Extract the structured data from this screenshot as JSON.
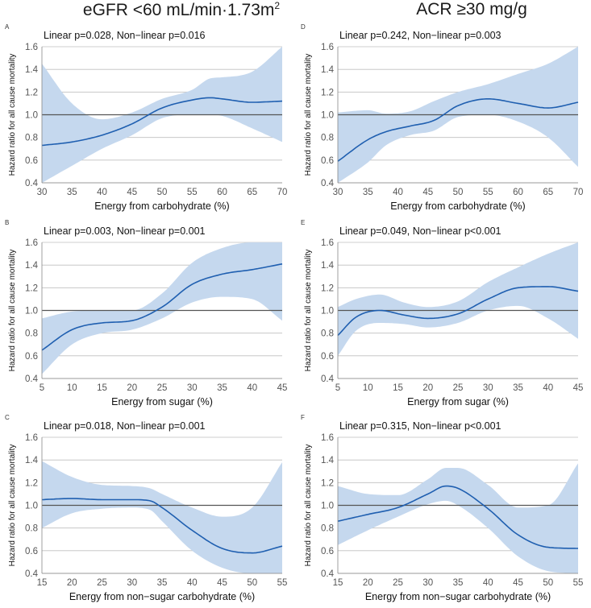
{
  "headers": {
    "left": "eGFR <60 mL/min·1.73m",
    "left_sup": "2",
    "right": "ACR ≥30 mg/g"
  },
  "colors": {
    "line": "#1f5fb0",
    "band": "#c5d8ee",
    "reference": "#555555",
    "grid": "#bfbfbf"
  },
  "chart_data": [
    {
      "id": "A",
      "type": "line",
      "panel_label": "A",
      "title": "Linear p=0.028, Non−linear p=0.016",
      "xlabel": "Energy from carbohydrate (%)",
      "ylabel": "Hazard ratio for all cause mortality",
      "xlim": [
        30,
        70
      ],
      "ylim": [
        0.4,
        1.6
      ],
      "xticks": [
        30,
        35,
        40,
        45,
        50,
        55,
        60,
        65,
        70
      ],
      "yticks": [
        0.4,
        0.6,
        0.8,
        1.0,
        1.2,
        1.4,
        1.6
      ],
      "reference_line": 1.0,
      "x": [
        30,
        35,
        40,
        45,
        50,
        55,
        58,
        60,
        65,
        70
      ],
      "hr": [
        0.73,
        0.76,
        0.82,
        0.92,
        1.06,
        1.13,
        1.15,
        1.14,
        1.11,
        1.12
      ],
      "lower": [
        0.4,
        0.55,
        0.7,
        0.82,
        0.97,
        1.0,
        1.0,
        0.99,
        0.88,
        0.76
      ],
      "upper": [
        1.45,
        1.1,
        0.96,
        1.02,
        1.14,
        1.22,
        1.32,
        1.33,
        1.38,
        1.6
      ]
    },
    {
      "id": "D",
      "type": "line",
      "panel_label": "D",
      "title": "Linear p=0.242, Non−linear p=0.003",
      "xlabel": "Energy from carbohydrate (%)",
      "ylabel": "Hazard ratio for all cause mortality",
      "xlim": [
        30,
        70
      ],
      "ylim": [
        0.4,
        1.6
      ],
      "xticks": [
        30,
        35,
        40,
        45,
        50,
        55,
        60,
        65,
        70
      ],
      "yticks": [
        0.4,
        0.6,
        0.8,
        1.0,
        1.2,
        1.4,
        1.6
      ],
      "reference_line": 1.0,
      "x": [
        30,
        35,
        38,
        42,
        46,
        50,
        55,
        60,
        65,
        70
      ],
      "hr": [
        0.59,
        0.78,
        0.85,
        0.9,
        0.95,
        1.08,
        1.14,
        1.1,
        1.06,
        1.11
      ],
      "lower": [
        0.4,
        0.58,
        0.73,
        0.82,
        0.86,
        0.98,
        1.0,
        0.94,
        0.8,
        0.54
      ],
      "upper": [
        1.02,
        1.04,
        1.01,
        1.03,
        1.12,
        1.2,
        1.27,
        1.36,
        1.45,
        1.6
      ]
    },
    {
      "id": "B",
      "type": "line",
      "panel_label": "B",
      "title": "Linear p=0.003, Non−linear p=0.001",
      "xlabel": "Energy from sugar (%)",
      "ylabel": "Hazard ratio for all cause mortality",
      "xlim": [
        5,
        45
      ],
      "ylim": [
        0.4,
        1.6
      ],
      "xticks": [
        5,
        10,
        15,
        20,
        25,
        30,
        35,
        40,
        45
      ],
      "yticks": [
        0.4,
        0.6,
        0.8,
        1.0,
        1.2,
        1.4,
        1.6
      ],
      "reference_line": 1.0,
      "x": [
        5,
        10,
        15,
        20,
        25,
        30,
        35,
        40,
        45
      ],
      "hr": [
        0.65,
        0.83,
        0.89,
        0.91,
        1.03,
        1.23,
        1.32,
        1.36,
        1.41
      ],
      "lower": [
        0.44,
        0.7,
        0.8,
        0.83,
        0.93,
        1.07,
        1.12,
        1.1,
        0.91
      ],
      "upper": [
        0.93,
        0.99,
        1.0,
        1.0,
        1.15,
        1.42,
        1.55,
        1.6,
        1.6
      ]
    },
    {
      "id": "E",
      "type": "line",
      "panel_label": "E",
      "title": "Linear p=0.049, Non−linear p<0.001",
      "xlabel": "Energy from sugar (%)",
      "ylabel": "Hazard ratio for all cause mortality",
      "xlim": [
        5,
        45
      ],
      "ylim": [
        0.4,
        1.6
      ],
      "xticks": [
        5,
        10,
        15,
        20,
        25,
        30,
        35,
        40,
        45
      ],
      "yticks": [
        0.4,
        0.6,
        0.8,
        1.0,
        1.2,
        1.4,
        1.6
      ],
      "reference_line": 1.0,
      "x": [
        5,
        8,
        12,
        16,
        20,
        25,
        30,
        35,
        40,
        45
      ],
      "hr": [
        0.78,
        0.94,
        1.0,
        0.96,
        0.93,
        0.97,
        1.1,
        1.2,
        1.21,
        1.17
      ],
      "lower": [
        0.6,
        0.82,
        0.89,
        0.88,
        0.85,
        0.89,
        1.0,
        1.04,
        0.93,
        0.75
      ],
      "upper": [
        1.03,
        1.1,
        1.14,
        1.07,
        1.03,
        1.08,
        1.25,
        1.38,
        1.5,
        1.6
      ]
    },
    {
      "id": "C",
      "type": "line",
      "panel_label": "C",
      "title": "Linear p=0.018, Non−linear p=0.001",
      "xlabel": "Energy from non−sugar carbohydrate (%)",
      "ylabel": "Hazard ratio for all cause mortality",
      "xlim": [
        15,
        55
      ],
      "ylim": [
        0.4,
        1.6
      ],
      "xticks": [
        15,
        20,
        25,
        30,
        35,
        40,
        45,
        50,
        55
      ],
      "yticks": [
        0.4,
        0.6,
        0.8,
        1.0,
        1.2,
        1.4,
        1.6
      ],
      "reference_line": 1.0,
      "x": [
        15,
        20,
        25,
        30,
        33,
        35,
        40,
        45,
        50,
        55
      ],
      "hr": [
        1.05,
        1.06,
        1.05,
        1.05,
        1.04,
        0.98,
        0.78,
        0.62,
        0.58,
        0.64
      ],
      "lower": [
        0.8,
        0.93,
        0.97,
        0.98,
        0.96,
        0.86,
        0.6,
        0.45,
        0.4,
        0.4
      ],
      "upper": [
        1.39,
        1.25,
        1.18,
        1.17,
        1.15,
        1.1,
        0.98,
        0.9,
        0.98,
        1.38
      ]
    },
    {
      "id": "F",
      "type": "line",
      "panel_label": "F",
      "title": "Linear p=0.315, Non−linear p<0.001",
      "xlabel": "Energy from non−sugar carbohydrate (%)",
      "ylabel": "Hazard ratio for all cause mortality",
      "xlim": [
        15,
        55
      ],
      "ylim": [
        0.4,
        1.6
      ],
      "xticks": [
        15,
        20,
        25,
        30,
        35,
        40,
        45,
        50,
        55
      ],
      "yticks": [
        0.4,
        0.6,
        0.8,
        1.0,
        1.2,
        1.4,
        1.6
      ],
      "reference_line": 1.0,
      "x": [
        15,
        20,
        25,
        30,
        33,
        35,
        40,
        45,
        50,
        55
      ],
      "hr": [
        0.86,
        0.92,
        0.98,
        1.1,
        1.17,
        1.15,
        0.97,
        0.74,
        0.63,
        0.62
      ],
      "lower": [
        0.65,
        0.78,
        0.9,
        1.01,
        1.04,
        1.0,
        0.8,
        0.55,
        0.42,
        0.4
      ],
      "upper": [
        1.17,
        1.1,
        1.09,
        1.23,
        1.33,
        1.33,
        1.18,
        0.98,
        1.0,
        1.37
      ]
    }
  ]
}
